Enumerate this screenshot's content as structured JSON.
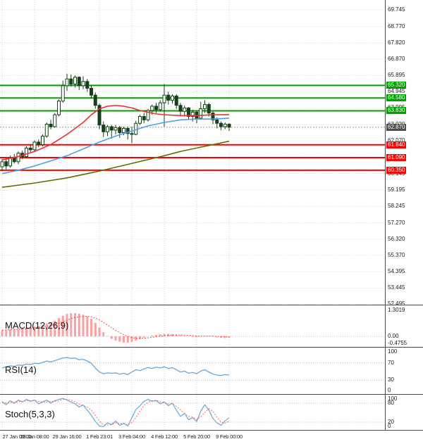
{
  "window": {
    "title": "Candlestick price chart with MACD, RSI and Stochastic panels"
  },
  "colors": {
    "background": "#ffffff",
    "grid": "#d9d9d9",
    "guide": "#bcbcbc",
    "axis_text": "#1c1c1c",
    "candle_border": "#17401a",
    "candle_up_fill": "#ffffff",
    "candle_down_fill": "#17401a",
    "ma_fast_blue": "#4da0e8",
    "ma_medium_red": "#f03030",
    "ma_long_olive": "#5f6f00",
    "resistance": "#00a000",
    "support": "#ff0000",
    "current_price_box": "#4d4d4d",
    "current_price_line": "#999999",
    "macd_histogram": "#ff9f9f",
    "macd_signal": "#ff4040",
    "rsi_line": "#6aa8d8",
    "stoch_k": "#6aa8d8",
    "stoch_d": "#ff6666",
    "separator": "#4a4a4a"
  },
  "indicators": {
    "macd_label": "MACD(12,26,9)",
    "rsi_label": "RSI(14)",
    "stoch_label": "Stoch(5,3,3)"
  },
  "chart_data": {
    "type": "candlestick",
    "grid": true,
    "y_axis": {
      "side": "right",
      "range": [
        52.43,
        70.32
      ],
      "ticks": [
        "69.745",
        "68.770",
        "67.820",
        "66.870",
        "65.895",
        "64.945",
        "63.995",
        "63.020",
        "62.070",
        "61.120",
        "60.145",
        "59.195",
        "58.245",
        "57.270",
        "56.320",
        "55.370",
        "54.395",
        "53.445",
        "52.495"
      ]
    },
    "x_axis": {
      "tick_labels": [
        "27 Jan 00:00",
        "28 Jan 08:00",
        "29 Jan 16:00",
        "1 Feb 23:01",
        "3 Feb 04:00",
        "4 Feb 12:00",
        "5 Feb 20:00",
        "9 Feb 00:00"
      ],
      "tick_candle_indices": [
        0,
        8,
        16,
        24,
        32,
        40,
        48,
        56
      ]
    },
    "levels": {
      "resistance": [
        "65.320",
        "64.580",
        "63.830"
      ],
      "support": [
        "61.840",
        "61.090",
        "60.350"
      ],
      "current_price": "62.870"
    },
    "candles_ohlc": [
      [
        60.55,
        61.0,
        60.3,
        60.85
      ],
      [
        60.85,
        61.05,
        60.4,
        60.6
      ],
      [
        60.6,
        61.2,
        60.5,
        61.05
      ],
      [
        61.05,
        61.3,
        60.75,
        60.85
      ],
      [
        60.85,
        61.45,
        60.7,
        61.35
      ],
      [
        61.35,
        61.5,
        61.0,
        61.15
      ],
      [
        61.15,
        61.75,
        61.05,
        61.65
      ],
      [
        61.65,
        61.85,
        61.4,
        61.55
      ],
      [
        61.55,
        62.1,
        61.45,
        62.0
      ],
      [
        62.0,
        62.15,
        61.7,
        61.85
      ],
      [
        61.85,
        62.45,
        61.75,
        62.35
      ],
      [
        62.35,
        63.15,
        62.25,
        63.05
      ],
      [
        63.05,
        63.3,
        62.75,
        62.9
      ],
      [
        62.9,
        63.7,
        62.85,
        63.6
      ],
      [
        63.6,
        64.5,
        63.5,
        64.4
      ],
      [
        64.4,
        65.6,
        64.3,
        65.3
      ],
      [
        65.3,
        66.0,
        65.0,
        65.7
      ],
      [
        65.7,
        65.95,
        65.25,
        65.4
      ],
      [
        65.4,
        65.9,
        65.2,
        65.8
      ],
      [
        65.8,
        65.85,
        65.05,
        65.3
      ],
      [
        65.3,
        65.85,
        65.1,
        65.55
      ],
      [
        65.55,
        65.7,
        64.95,
        65.15
      ],
      [
        65.15,
        65.3,
        64.55,
        64.75
      ],
      [
        64.75,
        64.9,
        63.95,
        64.15
      ],
      [
        64.15,
        64.25,
        62.75,
        63.0
      ],
      [
        63.0,
        63.2,
        62.3,
        62.6
      ],
      [
        62.6,
        63.0,
        62.35,
        62.9
      ],
      [
        62.9,
        63.0,
        62.2,
        62.7
      ],
      [
        62.7,
        63.0,
        62.45,
        62.85
      ],
      [
        62.85,
        62.95,
        62.25,
        62.55
      ],
      [
        62.55,
        62.9,
        62.4,
        62.8
      ],
      [
        62.8,
        62.9,
        62.15,
        62.5
      ],
      [
        62.5,
        62.9,
        61.95,
        62.45
      ],
      [
        62.45,
        63.25,
        62.4,
        63.1
      ],
      [
        63.1,
        63.6,
        63.0,
        63.5
      ],
      [
        63.5,
        63.7,
        63.1,
        63.3
      ],
      [
        63.3,
        63.95,
        63.2,
        63.85
      ],
      [
        63.85,
        64.2,
        63.6,
        64.1
      ],
      [
        64.1,
        64.3,
        63.7,
        63.9
      ],
      [
        63.9,
        64.45,
        63.8,
        64.3
      ],
      [
        64.3,
        65.4,
        62.9,
        64.75
      ],
      [
        64.75,
        64.95,
        64.2,
        64.45
      ],
      [
        64.45,
        64.8,
        64.25,
        64.7
      ],
      [
        64.7,
        64.8,
        63.95,
        64.15
      ],
      [
        64.15,
        64.3,
        63.55,
        63.8
      ],
      [
        63.8,
        64.15,
        63.5,
        64.0
      ],
      [
        64.0,
        64.05,
        63.3,
        63.5
      ],
      [
        63.5,
        63.9,
        63.2,
        63.75
      ],
      [
        63.75,
        63.85,
        63.1,
        63.4
      ],
      [
        63.4,
        64.35,
        63.3,
        63.95
      ],
      [
        63.95,
        64.45,
        63.7,
        64.2
      ],
      [
        64.2,
        64.3,
        63.5,
        63.7
      ],
      [
        63.7,
        63.8,
        63.05,
        63.3
      ],
      [
        63.3,
        63.45,
        62.8,
        63.1
      ],
      [
        63.1,
        63.2,
        62.7,
        62.9
      ],
      [
        62.9,
        63.15,
        62.75,
        63.05
      ],
      [
        63.05,
        63.1,
        62.65,
        62.87
      ]
    ],
    "moving_averages": {
      "blue_fast": [
        [
          0,
          60.15
        ],
        [
          4,
          60.35
        ],
        [
          8,
          60.6
        ],
        [
          12,
          60.9
        ],
        [
          16,
          61.2
        ],
        [
          20,
          61.6
        ],
        [
          24,
          62.0
        ],
        [
          28,
          62.35
        ],
        [
          32,
          62.65
        ],
        [
          36,
          62.95
        ],
        [
          40,
          63.15
        ],
        [
          44,
          63.3
        ],
        [
          48,
          63.35
        ],
        [
          52,
          63.35
        ],
        [
          56,
          63.4
        ]
      ],
      "red_medium": [
        [
          0,
          60.95
        ],
        [
          4,
          61.15
        ],
        [
          8,
          61.45
        ],
        [
          12,
          61.85
        ],
        [
          16,
          62.45
        ],
        [
          20,
          63.15
        ],
        [
          22,
          63.6
        ],
        [
          24,
          63.95
        ],
        [
          26,
          64.1
        ],
        [
          28,
          64.15
        ],
        [
          30,
          64.1
        ],
        [
          32,
          64.0
        ],
        [
          34,
          63.85
        ],
        [
          36,
          63.75
        ],
        [
          38,
          63.65
        ],
        [
          40,
          63.6
        ],
        [
          44,
          63.55
        ],
        [
          48,
          63.55
        ],
        [
          52,
          63.6
        ],
        [
          56,
          63.6
        ]
      ],
      "olive_long": [
        [
          0,
          59.35
        ],
        [
          8,
          59.6
        ],
        [
          16,
          59.9
        ],
        [
          24,
          60.3
        ],
        [
          32,
          60.75
        ],
        [
          40,
          61.2
        ],
        [
          44,
          61.45
        ],
        [
          48,
          61.65
        ],
        [
          52,
          61.85
        ],
        [
          56,
          62.05
        ]
      ]
    },
    "macd": {
      "axis_labels": [
        {
          "text": "1.3019",
          "value": 1.3019
        },
        {
          "text": "0.00",
          "value": 0
        },
        {
          "text": "-0.4755",
          "value": -0.4755
        }
      ],
      "zero_level": 0,
      "histogram": [
        0.3,
        0.32,
        0.34,
        0.33,
        0.36,
        0.38,
        0.42,
        0.44,
        0.48,
        0.5,
        0.55,
        0.62,
        0.68,
        0.76,
        0.88,
        1.0,
        1.08,
        1.12,
        1.13,
        1.1,
        1.05,
        0.97,
        0.85,
        0.66,
        0.42,
        0.2,
        0.02,
        -0.12,
        -0.2,
        -0.26,
        -0.3,
        -0.31,
        -0.27,
        -0.2,
        -0.13,
        -0.06,
        0.0,
        0.04,
        0.07,
        0.1,
        0.12,
        0.12,
        0.11,
        0.09,
        0.06,
        0.03,
        0.0,
        -0.03,
        -0.04,
        -0.02,
        0.01,
        0.02,
        -0.01,
        -0.05,
        -0.07,
        -0.08,
        -0.07
      ],
      "signal": [
        0.3,
        0.31,
        0.32,
        0.33,
        0.34,
        0.35,
        0.37,
        0.39,
        0.41,
        0.43,
        0.46,
        0.49,
        0.53,
        0.58,
        0.64,
        0.71,
        0.79,
        0.86,
        0.91,
        0.95,
        0.97,
        0.97,
        0.95,
        0.89,
        0.8,
        0.68,
        0.55,
        0.41,
        0.29,
        0.18,
        0.08,
        0.0,
        -0.06,
        -0.09,
        -0.1,
        -0.09,
        -0.07,
        -0.05,
        -0.02,
        0.0,
        0.03,
        0.05,
        0.06,
        0.07,
        0.07,
        0.06,
        0.05,
        0.04,
        0.02,
        0.01,
        0.01,
        0.01,
        0.01,
        0.0,
        -0.01,
        -0.02,
        -0.03
      ]
    },
    "rsi": {
      "axis_labels": [
        {
          "text": "100",
          "value": 100
        },
        {
          "text": "70",
          "value": 70
        },
        {
          "text": "30",
          "value": 30
        },
        {
          "text": "0",
          "value": 0
        }
      ],
      "guide_levels": [
        70,
        30
      ],
      "values": [
        58,
        61,
        63,
        62,
        65,
        64,
        67,
        66,
        69,
        68,
        71,
        74,
        72,
        75,
        78,
        81,
        82,
        80,
        81,
        77,
        78,
        74,
        69,
        58,
        49,
        45,
        47,
        46,
        47,
        44,
        46,
        43,
        49,
        54,
        52,
        56,
        59,
        57,
        60,
        58,
        61,
        57,
        59,
        54,
        49,
        51,
        46,
        48,
        45,
        51,
        54,
        49,
        44,
        42,
        41,
        43,
        42
      ]
    },
    "stoch": {
      "axis_labels": [
        {
          "text": "100",
          "value": 100
        },
        {
          "text": "80",
          "value": 80
        },
        {
          "text": "20",
          "value": 20
        },
        {
          "text": "0",
          "value": 0
        }
      ],
      "guide_levels": [
        80,
        20
      ],
      "k": [
        85,
        75,
        88,
        80,
        90,
        84,
        92,
        86,
        90,
        78,
        84,
        90,
        80,
        88,
        92,
        95,
        90,
        84,
        78,
        68,
        74,
        58,
        42,
        22,
        8,
        6,
        18,
        12,
        24,
        10,
        16,
        8,
        34,
        60,
        72,
        86,
        92,
        86,
        88,
        78,
        84,
        72,
        80,
        58,
        38,
        48,
        28,
        34,
        22,
        55,
        75,
        58,
        32,
        18,
        10,
        24,
        34
      ],
      "d": [
        82,
        81,
        83,
        81,
        86,
        85,
        89,
        87,
        89,
        85,
        84,
        84,
        85,
        86,
        87,
        92,
        92,
        90,
        84,
        77,
        73,
        67,
        58,
        41,
        24,
        12,
        11,
        12,
        18,
        15,
        17,
        11,
        19,
        34,
        55,
        73,
        83,
        88,
        89,
        84,
        83,
        78,
        79,
        70,
        59,
        48,
        38,
        37,
        28,
        37,
        51,
        63,
        55,
        36,
        20,
        17,
        23
      ]
    }
  }
}
